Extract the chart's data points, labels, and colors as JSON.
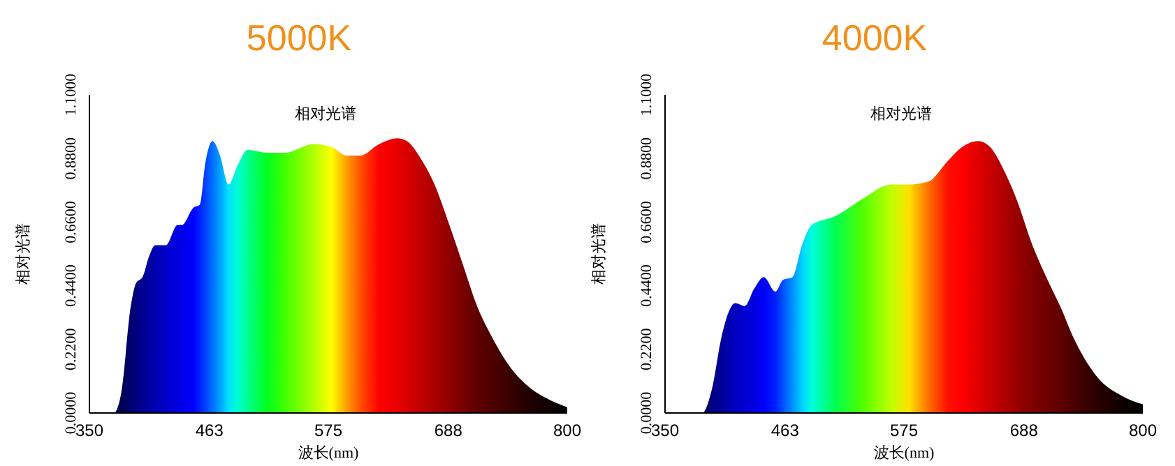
{
  "chart_data": [
    {
      "type": "area",
      "title": "5000K",
      "subtitle": "相对光谱",
      "xlabel": "波长(nm)",
      "ylabel": "相对光谱",
      "xlim": [
        350,
        800
      ],
      "xticks": [
        350,
        463,
        575,
        688,
        800
      ],
      "ylim": [
        0,
        1.1
      ],
      "yticks": [
        {
          "value": 0,
          "label": "0.0000"
        },
        {
          "value": 0.22,
          "label": "0.2200"
        },
        {
          "value": 0.44,
          "label": "0.4400"
        },
        {
          "value": 0.66,
          "label": "0.6600"
        },
        {
          "value": 0.88,
          "label": "0.8800"
        },
        {
          "value": 1.1,
          "label": "1.1000"
        }
      ],
      "x": [
        350,
        373,
        380,
        389,
        394,
        400,
        406,
        412,
        422,
        433,
        437,
        448,
        454,
        459,
        466,
        473,
        481,
        490,
        499,
        517,
        534,
        561,
        578,
        592,
        605,
        623,
        640,
        649,
        662,
        675,
        689,
        702,
        715,
        728,
        746,
        764,
        781,
        800
      ],
      "values": [
        0,
        0,
        0.07,
        0.37,
        0.45,
        0.47,
        0.54,
        0.58,
        0.58,
        0.65,
        0.65,
        0.71,
        0.72,
        0.86,
        0.94,
        0.89,
        0.79,
        0.86,
        0.91,
        0.9,
        0.9,
        0.93,
        0.92,
        0.89,
        0.89,
        0.93,
        0.95,
        0.94,
        0.88,
        0.79,
        0.65,
        0.51,
        0.37,
        0.27,
        0.16,
        0.09,
        0.05,
        0.02
      ],
      "colors": [
        "#000020",
        "#000040",
        "#000050",
        "#000070",
        "#000080",
        "#000090",
        "#0000a0",
        "#0000b0",
        "#0000c8",
        "#0000e0",
        "#0000e8",
        "#0000ff",
        "#0020ff",
        "#0040ff",
        "#0070ff",
        "#00a0ff",
        "#00e0ff",
        "#00ffd0",
        "#00ff90",
        "#00ff20",
        "#40ff00",
        "#b0ff00",
        "#ffff00",
        "#ffa000",
        "#ff5000",
        "#ff0000",
        "#e80000",
        "#d80000",
        "#c00000",
        "#a80000",
        "#900000",
        "#780000",
        "#600000",
        "#500000",
        "#380000",
        "#200000",
        "#100000",
        "#000000"
      ]
    },
    {
      "type": "area",
      "title": "4000K",
      "subtitle": "相对光谱",
      "xlabel": "波长(nm)",
      "ylabel": "相对光谱",
      "xlim": [
        350,
        800
      ],
      "xticks": [
        350,
        463,
        575,
        688,
        800
      ],
      "ylim": [
        0,
        1.1
      ],
      "yticks": [
        {
          "value": 0,
          "label": "0.0000"
        },
        {
          "value": 0.22,
          "label": "0.2200"
        },
        {
          "value": 0.44,
          "label": "0.4400"
        },
        {
          "value": 0.66,
          "label": "0.6600"
        },
        {
          "value": 0.88,
          "label": "0.8800"
        },
        {
          "value": 1.1,
          "label": "1.1000"
        }
      ],
      "x": [
        350,
        385,
        394,
        403,
        410,
        416,
        425,
        434,
        443,
        454,
        461,
        470,
        479,
        488,
        510,
        536,
        563,
        580,
        598,
        616,
        630,
        645,
        656,
        669,
        682,
        695,
        709,
        722,
        736,
        758,
        780,
        800
      ],
      "values": [
        0,
        0,
        0.08,
        0.26,
        0.35,
        0.38,
        0.37,
        0.43,
        0.47,
        0.42,
        0.46,
        0.47,
        0.58,
        0.65,
        0.68,
        0.74,
        0.79,
        0.79,
        0.8,
        0.87,
        0.92,
        0.94,
        0.92,
        0.84,
        0.73,
        0.59,
        0.47,
        0.37,
        0.25,
        0.12,
        0.06,
        0.03
      ],
      "colors": [
        "#000020",
        "#000060",
        "#000080",
        "#000098",
        "#0000b0",
        "#0000c0",
        "#0000d0",
        "#0000e0",
        "#0000f8",
        "#0020ff",
        "#0050ff",
        "#0090ff",
        "#00d0ff",
        "#00ffe0",
        "#00ff50",
        "#50ff00",
        "#c0ff00",
        "#ffe000",
        "#ff7000",
        "#ff1000",
        "#ff0000",
        "#e00000",
        "#c80000",
        "#b00000",
        "#980000",
        "#800000",
        "#700000",
        "#600000",
        "#480000",
        "#280000",
        "#100000",
        "#000000"
      ]
    }
  ]
}
